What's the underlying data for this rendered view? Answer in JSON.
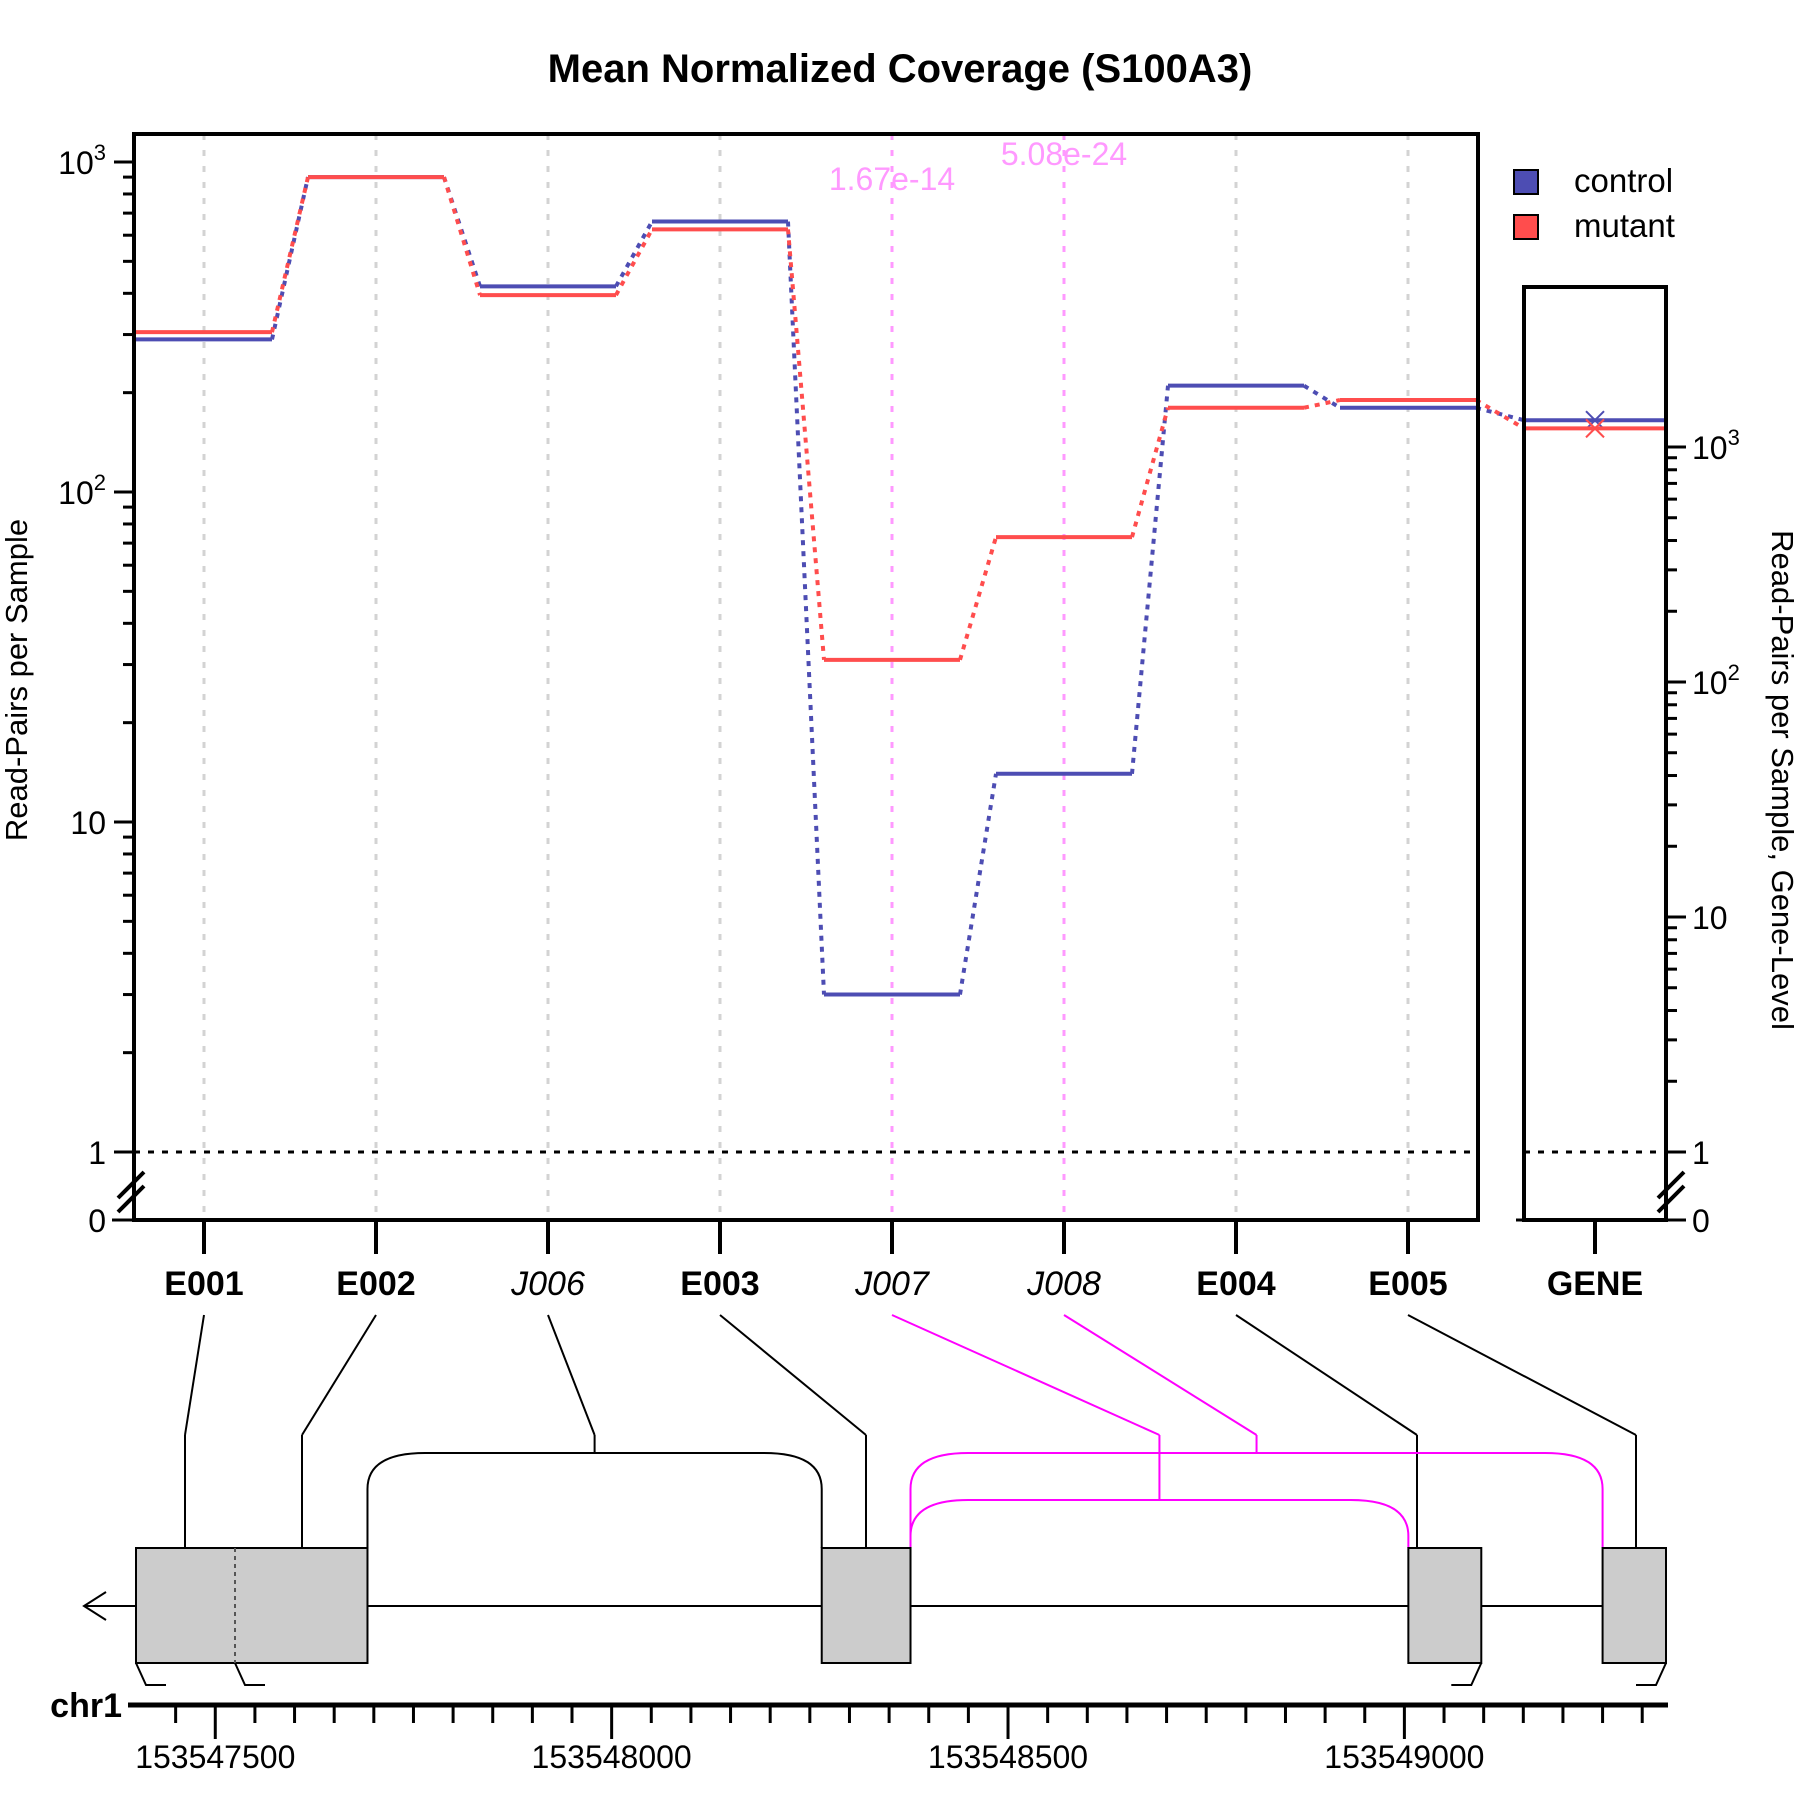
{
  "chart_data": {
    "type": "line",
    "title": "Mean Normalized Coverage (S100A3)",
    "ylabel": "Read-Pairs per Sample",
    "ylabel_right": "Read-Pairs per Sample, Gene-Level",
    "scale": "log",
    "main_yticks": [
      "0",
      "1",
      "10"
    ],
    "gene_yticks": [
      "0",
      "1",
      "10"
    ],
    "features": [
      {
        "id": "E001",
        "kind": "exon"
      },
      {
        "id": "E002",
        "kind": "exon"
      },
      {
        "id": "J006",
        "kind": "junction"
      },
      {
        "id": "E003",
        "kind": "exon"
      },
      {
        "id": "J007",
        "kind": "junction",
        "pvalue": "1.67e-14",
        "significant": true
      },
      {
        "id": "J008",
        "kind": "junction",
        "pvalue": "5.08e-24",
        "significant": true
      },
      {
        "id": "E004",
        "kind": "exon"
      },
      {
        "id": "E005",
        "kind": "exon"
      }
    ],
    "series": [
      {
        "name": "control",
        "color": "#4d4db3",
        "values": [
          290,
          900,
          420,
          660,
          3,
          14,
          210,
          180
        ],
        "gene": 1300
      },
      {
        "name": "mutant",
        "color": "#ff4d4d",
        "values": [
          305,
          900,
          395,
          625,
          31,
          73,
          180,
          190
        ],
        "gene": 1200
      }
    ],
    "gene_label": "GENE",
    "chromosome": "chr1",
    "coord_ticks": [
      "153547500",
      "153548000",
      "153548500",
      "153549000"
    ],
    "genome_range": [
      153547400,
      153549330
    ],
    "exon_blocks": [
      [
        153547400,
        153547692
      ],
      [
        153548265,
        153548377
      ],
      [
        153549005,
        153549097
      ],
      [
        153549250,
        153549330
      ]
    ],
    "colors": {
      "sig": "#ff00ff",
      "sig_light": "#ff99ff",
      "exon": "#cccccc"
    }
  }
}
